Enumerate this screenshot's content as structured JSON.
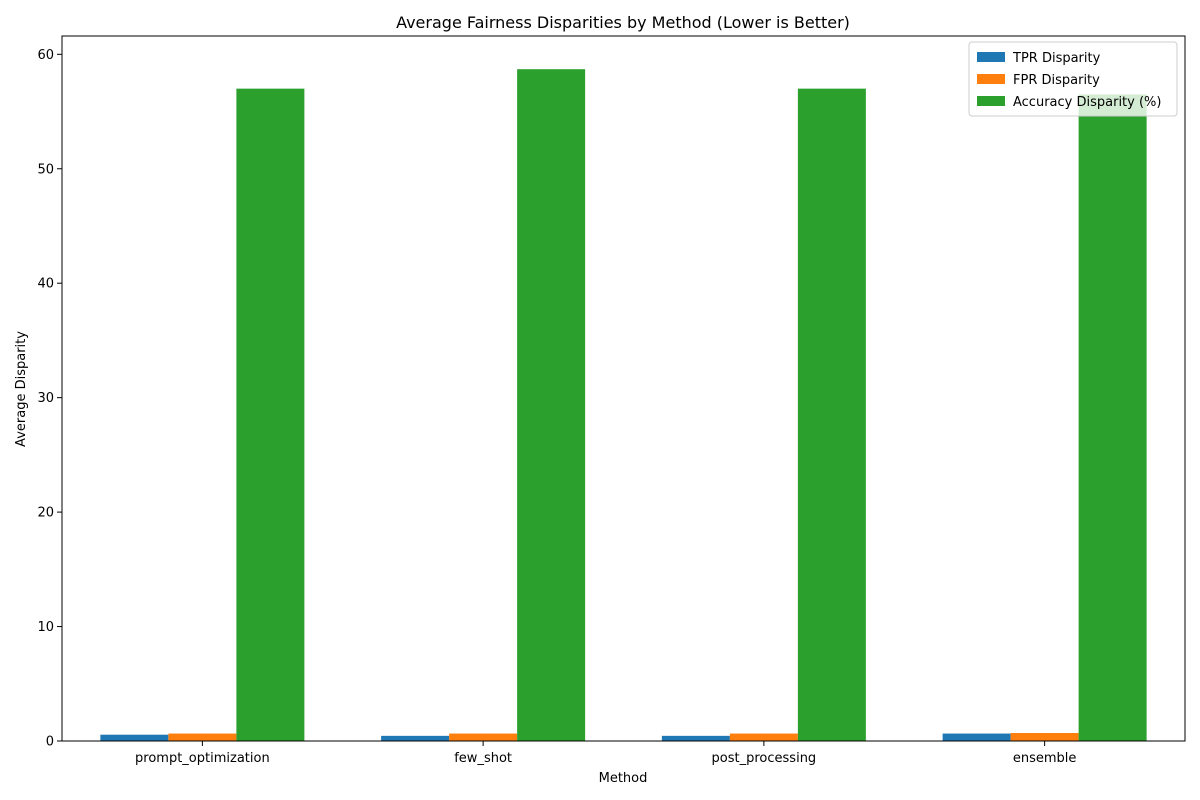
{
  "chart_data": {
    "type": "bar",
    "title": "Average Fairness Disparities by Method (Lower is Better)",
    "xlabel": "Method",
    "ylabel": "Average Disparity",
    "categories": [
      "prompt_optimization",
      "few_shot",
      "post_processing",
      "ensemble"
    ],
    "series": [
      {
        "name": "TPR Disparity",
        "color": "#1f77b4",
        "values": [
          0.55,
          0.45,
          0.45,
          0.65
        ]
      },
      {
        "name": "FPR Disparity",
        "color": "#ff7f0e",
        "values": [
          0.65,
          0.65,
          0.65,
          0.7
        ]
      },
      {
        "name": "Accuracy Disparity (%)",
        "color": "#2ca02c",
        "values": [
          57.0,
          58.7,
          57.0,
          56.5
        ]
      }
    ],
    "ylim": [
      0,
      61.6
    ],
    "yticks": [
      0,
      10,
      20,
      30,
      40,
      50,
      60
    ],
    "grid": false,
    "legend_position": "top-right"
  }
}
